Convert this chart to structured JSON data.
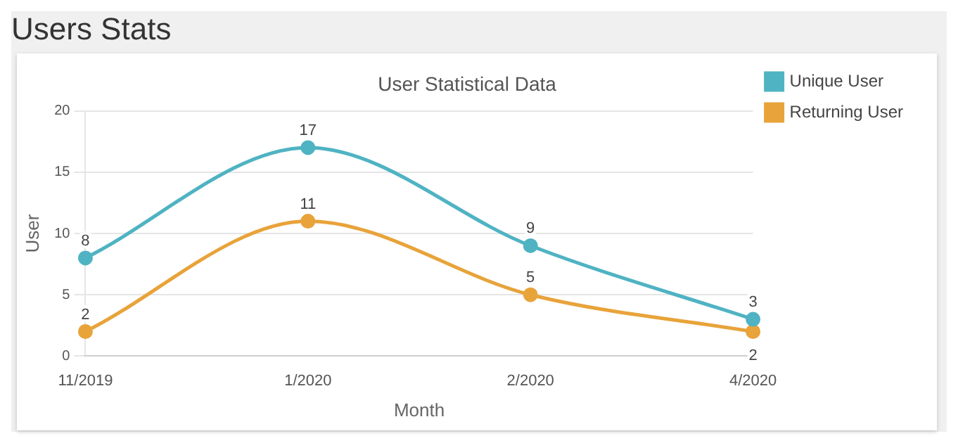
{
  "chart_data": {
    "type": "line",
    "title": "Users Stats",
    "subtitle": "User Statistical Data",
    "xlabel": "Month",
    "ylabel": "User",
    "categories": [
      "11/2019",
      "1/2020",
      "2/2020",
      "4/2020"
    ],
    "series": [
      {
        "name": "Unique User",
        "color": "#4fb3c3",
        "values": [
          8,
          17,
          9,
          3
        ]
      },
      {
        "name": "Returning User",
        "color": "#e8a33a",
        "values": [
          2,
          11,
          5,
          2
        ]
      }
    ],
    "ylim": [
      0,
      20
    ],
    "yticks": [
      0,
      5,
      10,
      15,
      20
    ],
    "grid": "y",
    "legend": "top right",
    "marker": "circle",
    "line_style": "solid",
    "data_labels": true
  }
}
